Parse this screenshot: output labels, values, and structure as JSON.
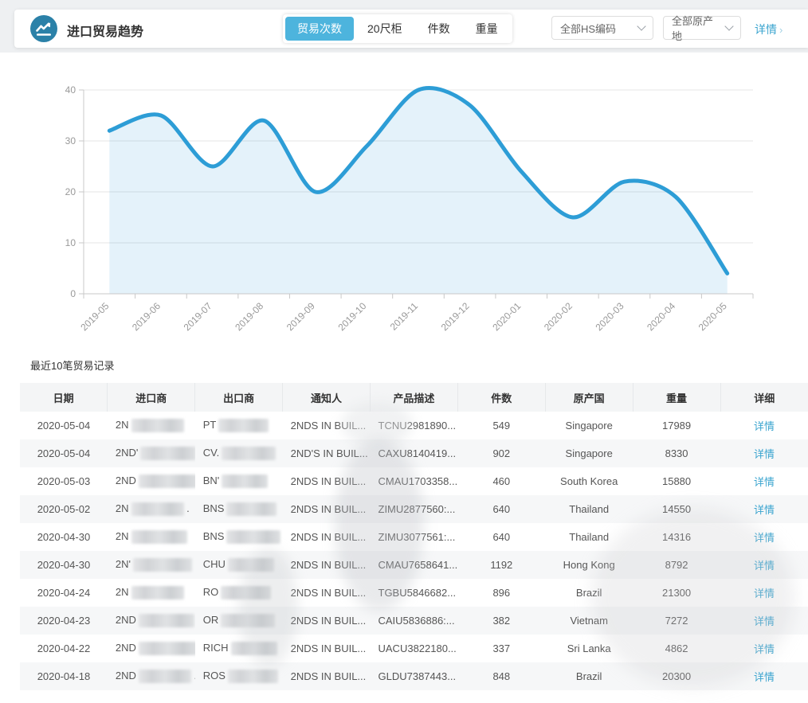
{
  "header": {
    "title": "进口贸易趋势",
    "metric_tabs": [
      {
        "label": "贸易次数",
        "active": true
      },
      {
        "label": "20尺柜",
        "active": false
      },
      {
        "label": "件数",
        "active": false
      },
      {
        "label": "重量",
        "active": false
      }
    ],
    "filters": {
      "hs_code": "全部HS编码",
      "origin": "全部原产地"
    },
    "detail_link": "详情",
    "detail_arrow": "›",
    "accent_color": "#4db4dd",
    "icon_color": "#2b81a8"
  },
  "chart_data": {
    "type": "area",
    "smooth": true,
    "x": [
      "2019-05",
      "2019-06",
      "2019-07",
      "2019-08",
      "2019-09",
      "2019-10",
      "2019-11",
      "2019-12",
      "2020-01",
      "2020-02",
      "2020-03",
      "2020-04",
      "2020-05"
    ],
    "values": [
      32,
      35,
      25,
      34,
      20,
      29,
      40,
      37,
      24,
      15,
      22,
      19,
      4
    ],
    "title": "",
    "xlabel": "",
    "ylabel": "",
    "ylim": [
      0,
      40
    ],
    "yticks": [
      0,
      10,
      20,
      30,
      40
    ],
    "grid": true,
    "legend": "none",
    "line_color": "#2d9dd6",
    "fill_color": "rgba(45,157,214,0.13)",
    "axis_color": "#c8c8c8",
    "grid_color": "#e5e5e5",
    "tick_text_color": "#999999"
  },
  "table": {
    "title": "最近10笔贸易记录",
    "columns": [
      "日期",
      "进口商",
      "出口商",
      "通知人",
      "产品描述",
      "件数",
      "原产国",
      "重量",
      "详细"
    ],
    "detail_label": "详情",
    "rows": [
      {
        "date": "2020-05-04",
        "importer": "2N",
        "importer_suffix": "",
        "exporter": "PT",
        "notify": "2NDS IN BUIL...",
        "product": "TCNU2981890...",
        "qty": "549",
        "country": "Singapore",
        "weight": "17989"
      },
      {
        "date": "2020-05-04",
        "importer": "2ND'",
        "importer_suffix": "",
        "exporter": "CV.",
        "notify": "2ND'S IN BUIL...",
        "product": "CAXU8140419...",
        "qty": "902",
        "country": "Singapore",
        "weight": "8330"
      },
      {
        "date": "2020-05-03",
        "importer": "2ND",
        "importer_suffix": "",
        "exporter": "BN'",
        "notify": "2NDS IN BUIL...",
        "product": "CMAU1703358...",
        "qty": "460",
        "country": "South Korea",
        "weight": "15880"
      },
      {
        "date": "2020-05-02",
        "importer": "2N",
        "importer_suffix": ".",
        "exporter": "BNS",
        "notify": "2NDS IN BUIL...",
        "product": "ZIMU2877560:...",
        "qty": "640",
        "country": "Thailand",
        "weight": "14550"
      },
      {
        "date": "2020-04-30",
        "importer": "2N",
        "importer_suffix": "",
        "exporter": "BNS",
        "notify": "2NDS IN BUIL...",
        "product": "ZIMU3077561:...",
        "qty": "640",
        "country": "Thailand",
        "weight": "14316"
      },
      {
        "date": "2020-04-30",
        "importer": "2N'",
        "importer_suffix": "",
        "exporter": "CHU",
        "notify": "2NDS IN BUIL...",
        "product": "CMAU7658641...",
        "qty": "1192",
        "country": "Hong Kong",
        "weight": "8792"
      },
      {
        "date": "2020-04-24",
        "importer": "2N",
        "importer_suffix": "",
        "exporter": "RO",
        "notify": "2NDS IN BUIL...",
        "product": "TGBU5846682...",
        "qty": "896",
        "country": "Brazil",
        "weight": "21300"
      },
      {
        "date": "2020-04-23",
        "importer": "2ND",
        "importer_suffix": "",
        "exporter": "OR",
        "notify": "2NDS IN BUIL...",
        "product": "CAIU5836886:...",
        "qty": "382",
        "country": "Vietnam",
        "weight": "7272"
      },
      {
        "date": "2020-04-22",
        "importer": "2ND",
        "importer_suffix": "",
        "exporter": "RICH",
        "notify": "2NDS IN BUIL...",
        "product": "UACU3822180...",
        "qty": "337",
        "country": "Sri Lanka",
        "weight": "4862"
      },
      {
        "date": "2020-04-18",
        "importer": "2ND",
        "importer_suffix": ".",
        "exporter": "ROS",
        "notify": "2NDS IN BUIL...",
        "product": "GLDU7387443...",
        "qty": "848",
        "country": "Brazil",
        "weight": "20300"
      }
    ]
  }
}
